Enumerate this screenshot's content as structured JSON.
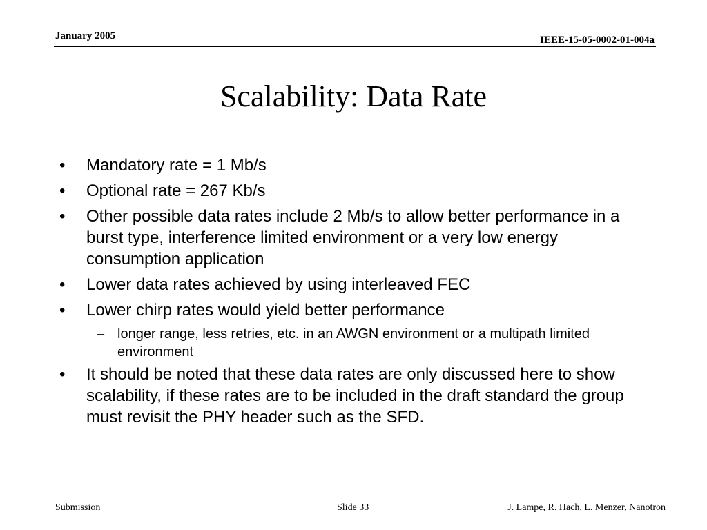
{
  "header": {
    "date": "January 2005",
    "doc_id": "IEEE-15-05-0002-01-004a"
  },
  "slide": {
    "title": "Scalability: Data Rate",
    "bullets": [
      "Mandatory rate = 1 Mb/s",
      "Optional rate = 267 Kb/s",
      "Other possible data rates include 2 Mb/s to allow better performance in a burst type, interference limited environment or a very low energy consumption application",
      "Lower data rates achieved by using interleaved FEC",
      "Lower chirp rates would yield better performance",
      "It should be noted that these data rates are only discussed here to show scalability, if these rates are to be included in the draft standard the group must revisit the PHY header such as the SFD."
    ],
    "sub_bullets": [
      "longer range, less retries, etc. in an AWGN environment or a multipath limited environment"
    ],
    "bullet_glyph": "•",
    "dash_glyph": "–"
  },
  "footer": {
    "left": "Submission",
    "center": "Slide 33",
    "right": "J. Lampe, R. Hach, L. Menzer, Nanotron"
  }
}
